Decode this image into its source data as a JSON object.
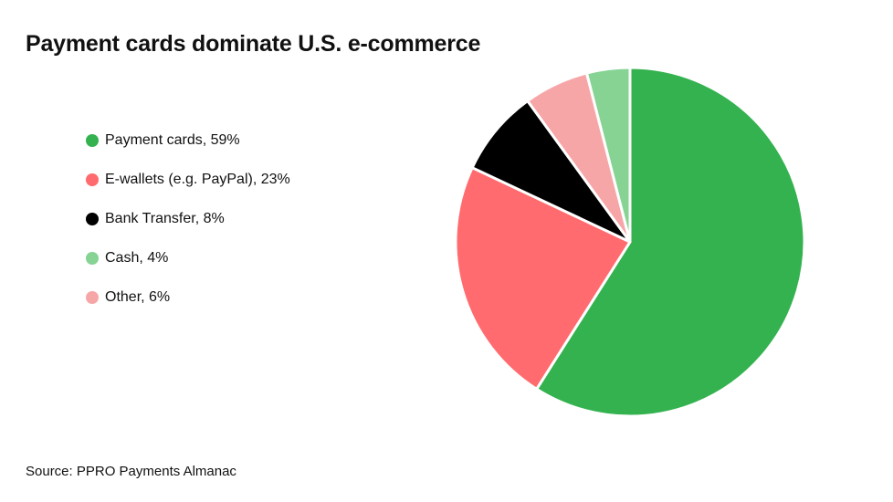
{
  "title": "Payment cards dominate U.S. e-commerce",
  "source": "Source: PPRO Payments Almanac",
  "legend": [
    {
      "label": "Payment cards, 59%",
      "color": "#34b24f"
    },
    {
      "label": "E-wallets (e.g. PayPal), 23%",
      "color": "#ff6b6e"
    },
    {
      "label": "Bank Transfer, 8%",
      "color": "#000000"
    },
    {
      "label": "Cash, 4%",
      "color": "#86d394"
    },
    {
      "label": "Other, 6%",
      "color": "#f7a6a8"
    }
  ],
  "chart_data": {
    "type": "pie",
    "title": "Payment cards dominate U.S. e-commerce",
    "legend_position": "left",
    "slices": [
      {
        "label": "Payment cards",
        "value": 59,
        "color": "#34b24f"
      },
      {
        "label": "E-wallets (e.g. PayPal)",
        "value": 23,
        "color": "#ff6b6e"
      },
      {
        "label": "Bank Transfer",
        "value": 8,
        "color": "#000000"
      },
      {
        "label": "Other",
        "value": 6,
        "color": "#f7a6a8"
      },
      {
        "label": "Cash",
        "value": 4,
        "color": "#86d394"
      }
    ]
  }
}
